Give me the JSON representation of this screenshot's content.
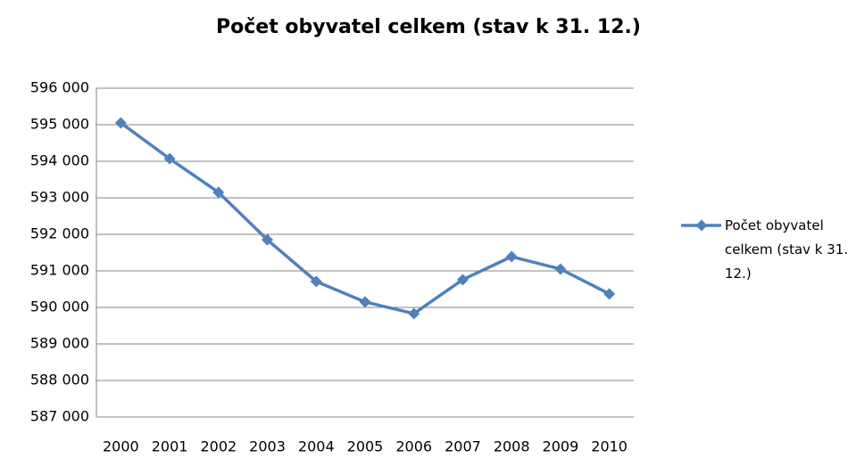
{
  "chart_data": {
    "type": "line",
    "title": "Počet obyvatel celkem (stav k 31. 12.)",
    "categories": [
      "2000",
      "2001",
      "2002",
      "2003",
      "2004",
      "2005",
      "2006",
      "2007",
      "2008",
      "2009",
      "2010"
    ],
    "series": [
      {
        "name": "Počet obyvatel celkem (stav k 31. 12.)",
        "color": "#4f81bd",
        "values": [
          595050,
          594070,
          593150,
          591850,
          590710,
          590150,
          589830,
          590760,
          591390,
          591050,
          590370
        ]
      }
    ],
    "ylim": [
      587000,
      596000
    ],
    "yticks": [
      {
        "value": 587000,
        "label": "587 000"
      },
      {
        "value": 588000,
        "label": "588 000"
      },
      {
        "value": 589000,
        "label": "589 000"
      },
      {
        "value": 590000,
        "label": "590 000"
      },
      {
        "value": 591000,
        "label": "591 000"
      },
      {
        "value": 592000,
        "label": "592 000"
      },
      {
        "value": 593000,
        "label": "593 000"
      },
      {
        "value": 594000,
        "label": "594 000"
      },
      {
        "value": 595000,
        "label": "595 000"
      },
      {
        "value": 596000,
        "label": "596 000"
      }
    ],
    "grid": true,
    "legend": "right"
  }
}
